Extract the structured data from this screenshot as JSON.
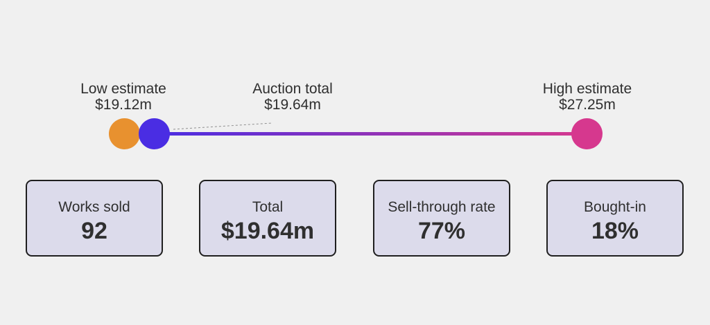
{
  "estimates": {
    "low": {
      "caption": "Low estimate",
      "amount": "$19.12m",
      "value_m": 19.12
    },
    "auction": {
      "caption": "Auction total",
      "amount": "$19.64m",
      "value_m": 19.64
    },
    "high": {
      "caption": "High estimate",
      "amount": "$27.25m",
      "value_m": 27.25
    }
  },
  "colors": {
    "low": "#e8912f",
    "auction": "#4a2de3",
    "high": "#d6388e",
    "card_bg": "#dcdbeb"
  },
  "stats": {
    "works_sold": {
      "label": "Works sold",
      "value": "92"
    },
    "total": {
      "label": "Total",
      "value": "$19.64m"
    },
    "sell_through": {
      "label": "Sell-through rate",
      "value": "77%"
    },
    "bought_in": {
      "label": "Bought-in",
      "value": "18%"
    }
  }
}
